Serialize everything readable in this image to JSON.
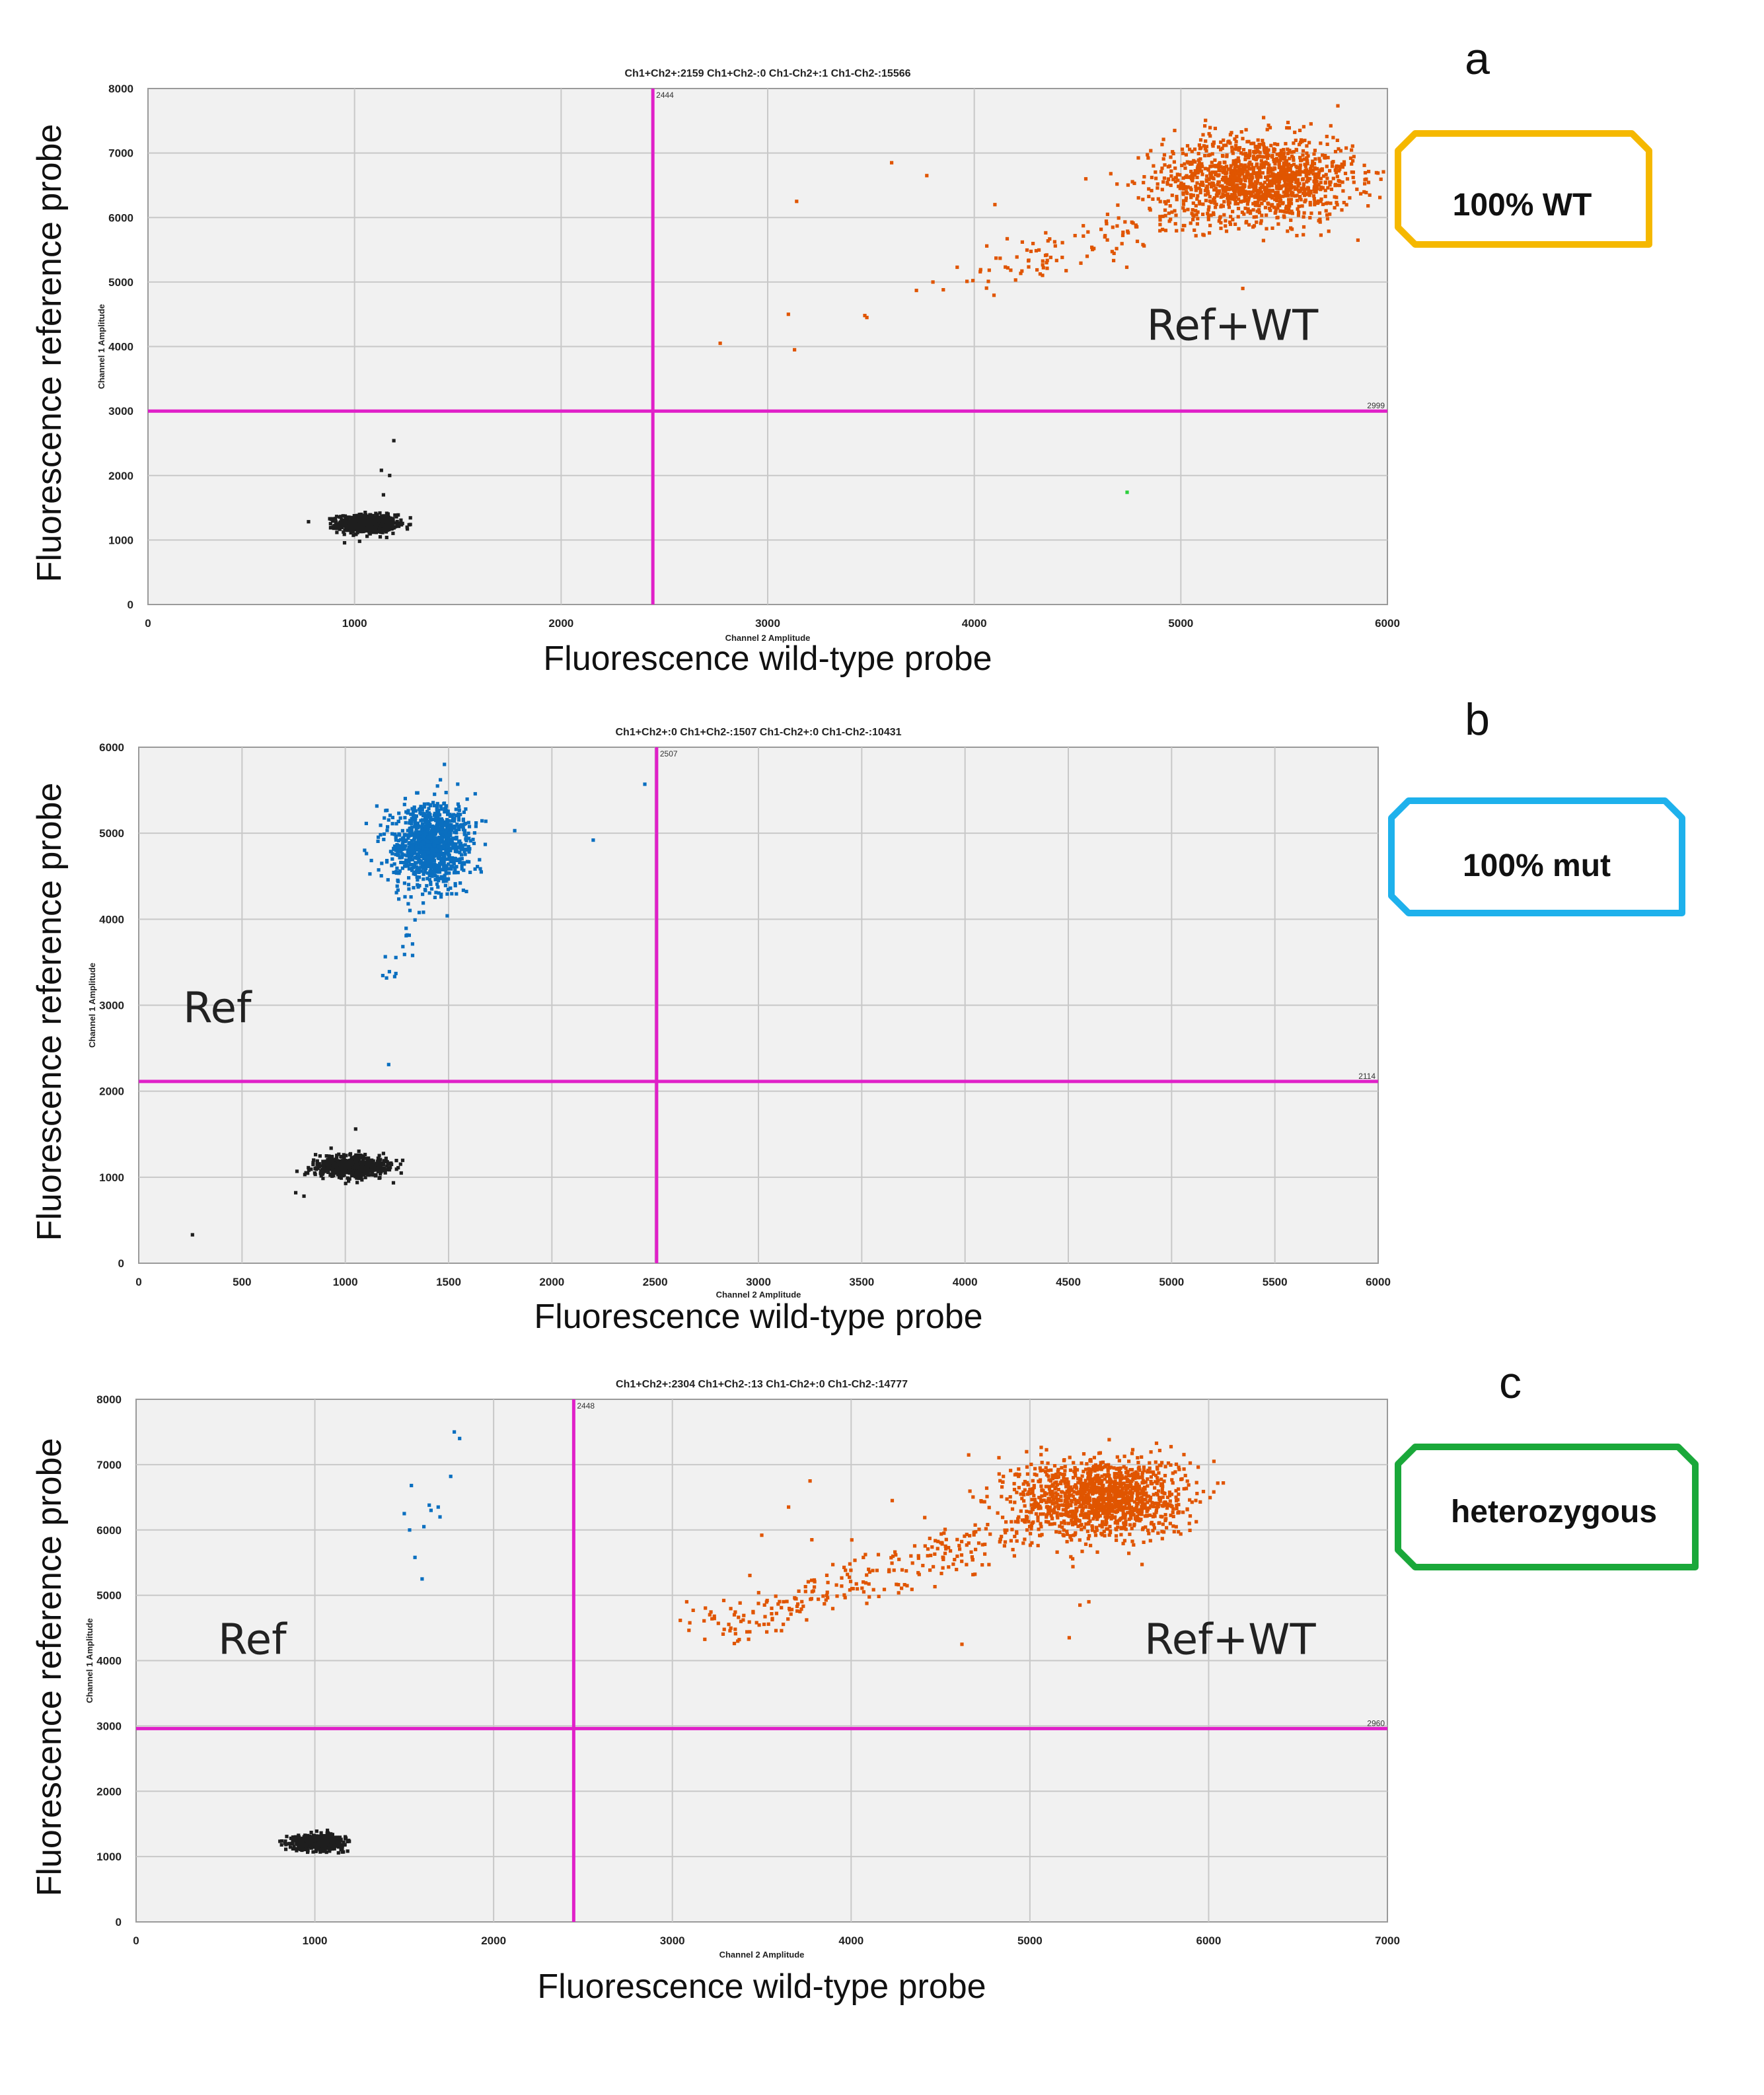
{
  "chart_data": [
    {
      "panel_letter": "a",
      "type": "scatter",
      "title": "Ch1+Ch2+:2159  Ch1+Ch2-:0  Ch1-Ch2+:1  Ch1-Ch2-:15566",
      "xlabel": "Fluorescence wild-type probe",
      "ylabel": "Fluorescence reference probe",
      "x_axis_small_label": "Channel 2 Amplitude",
      "y_axis_small_label": "Channel 1 Amplitude",
      "xlim": [
        0,
        6000
      ],
      "ylim": [
        0,
        8000
      ],
      "xticks": [
        0,
        1000,
        2000,
        3000,
        4000,
        5000,
        6000
      ],
      "yticks": [
        0,
        1000,
        2000,
        3000,
        4000,
        5000,
        6000,
        7000,
        8000
      ],
      "grid": true,
      "threshold_x": 2444,
      "threshold_x_label": "2444",
      "threshold_y": 2999,
      "threshold_y_label": "2999",
      "badge": {
        "label": "100% WT",
        "color": "#f5b800"
      },
      "region_labels": [
        {
          "text": "Ref+WT",
          "x": 5250,
          "y": 4100
        }
      ],
      "series": [
        {
          "name": "double negative",
          "color": "#1e1e1e",
          "count": 15566,
          "cluster": {
            "cx": 1060,
            "cy": 1250,
            "sx": 70,
            "sy": 70,
            "n": 700
          },
          "outliers": [
            [
              1130,
              2080
            ],
            [
              1170,
              2000
            ],
            [
              1190,
              2540
            ],
            [
              1140,
              1700
            ]
          ]
        },
        {
          "name": "Ch1+Ch2+",
          "color": "#e05500",
          "count": 2159,
          "cluster": {
            "cx": 5380,
            "cy": 6600,
            "sx": 230,
            "sy": 330,
            "n": 1300
          },
          "tail": {
            "from": [
              4000,
              5100
            ],
            "to": [
              5200,
              6300
            ],
            "n": 130,
            "spread": 180
          },
          "outliers": [
            [
              2770,
              4050
            ],
            [
              3100,
              4500
            ],
            [
              3130,
              3950
            ],
            [
              3140,
              6250
            ],
            [
              3470,
              4480
            ],
            [
              3480,
              4450
            ],
            [
              3600,
              6850
            ],
            [
              3770,
              6650
            ],
            [
              3720,
              4870
            ],
            [
              3800,
              5000
            ],
            [
              3850,
              4880
            ],
            [
              4100,
              6200
            ],
            [
              4350,
              5300
            ],
            [
              4540,
              6600
            ],
            [
              4970,
              7350
            ],
            [
              5300,
              4900
            ]
          ]
        },
        {
          "name": "Ch1-Ch2+",
          "color": "#2ccf3c",
          "count": 1,
          "outliers": [
            [
              4740,
              1740
            ]
          ]
        }
      ]
    },
    {
      "panel_letter": "b",
      "type": "scatter",
      "title": "Ch1+Ch2+:0  Ch1+Ch2-:1507  Ch1-Ch2+:0  Ch1-Ch2-:10431",
      "xlabel": "Fluorescence wild-type probe",
      "ylabel": "Fluorescence reference probe",
      "x_axis_small_label": "Channel 2 Amplitude",
      "y_axis_small_label": "Channel 1 Amplitude",
      "xlim": [
        0,
        6000
      ],
      "ylim": [
        0,
        6000
      ],
      "xticks": [
        0,
        500,
        1000,
        1500,
        2000,
        2500,
        3000,
        3500,
        4000,
        4500,
        5000,
        5500,
        6000
      ],
      "yticks": [
        0,
        1000,
        2000,
        3000,
        4000,
        5000,
        6000
      ],
      "grid": true,
      "threshold_x": 2507,
      "threshold_x_label": "2507",
      "threshold_y": 2114,
      "threshold_y_label": "2114",
      "badge": {
        "label": "100% mut",
        "color": "#1eb1ec"
      },
      "region_labels": [
        {
          "text": "Ref",
          "x": 380,
          "y": 2800
        }
      ],
      "series": [
        {
          "name": "double negative",
          "color": "#1e1e1e",
          "count": 10431,
          "cluster": {
            "cx": 1030,
            "cy": 1120,
            "sx": 85,
            "sy": 60,
            "n": 700
          },
          "outliers": [
            [
              260,
              330
            ],
            [
              760,
              820
            ],
            [
              800,
              780
            ],
            [
              1050,
              1560
            ]
          ]
        },
        {
          "name": "Ch1+Ch2-",
          "color": "#0a6fc0",
          "count": 1507,
          "cluster": {
            "cx": 1410,
            "cy": 4870,
            "sx": 90,
            "sy": 230,
            "n": 1100
          },
          "tail": {
            "from": [
              1230,
              3300
            ],
            "to": [
              1380,
              4200
            ],
            "n": 18,
            "spread": 60
          },
          "outliers": [
            [
              1210,
              2310
            ],
            [
              1820,
              5030
            ],
            [
              2200,
              4920
            ],
            [
              2450,
              5570
            ],
            [
              1480,
              5800
            ]
          ]
        }
      ]
    },
    {
      "panel_letter": "c",
      "type": "scatter",
      "title": "Ch1+Ch2+:2304  Ch1+Ch2-:13  Ch1-Ch2+:0  Ch1-Ch2-:14777",
      "xlabel": "Fluorescence wild-type probe",
      "ylabel": "Fluorescence reference probe",
      "x_axis_small_label": "Channel 2 Amplitude",
      "y_axis_small_label": "Channel 1 Amplitude",
      "xlim": [
        0,
        7000
      ],
      "ylim": [
        0,
        8000
      ],
      "xticks": [
        0,
        1000,
        2000,
        3000,
        4000,
        5000,
        6000,
        7000
      ],
      "yticks": [
        0,
        1000,
        2000,
        3000,
        4000,
        5000,
        6000,
        7000,
        8000
      ],
      "grid": true,
      "threshold_x": 2448,
      "threshold_x_label": "2448",
      "threshold_y": 2960,
      "threshold_y_label": "2960",
      "badge": {
        "label": "heterozygous",
        "color": "#1aa83a"
      },
      "region_labels": [
        {
          "text": "Ref",
          "x": 650,
          "y": 4100
        },
        {
          "text": "Ref+WT",
          "x": 6120,
          "y": 4100
        }
      ],
      "series": [
        {
          "name": "double negative",
          "color": "#1e1e1e",
          "count": 14777,
          "cluster": {
            "cx": 1020,
            "cy": 1220,
            "sx": 70,
            "sy": 55,
            "n": 700
          },
          "outliers": []
        },
        {
          "name": "Ch1+Ch2-",
          "color": "#0a6fc0",
          "count": 13,
          "outliers": [
            [
              1500,
              6250
            ],
            [
              1540,
              6680
            ],
            [
              1560,
              5580
            ],
            [
              1600,
              5250
            ],
            [
              1610,
              6050
            ],
            [
              1640,
              6380
            ],
            [
              1690,
              6350
            ],
            [
              1700,
              6200
            ],
            [
              1760,
              6820
            ],
            [
              1780,
              7500
            ],
            [
              1810,
              7400
            ],
            [
              1530,
              6000
            ],
            [
              1650,
              6300
            ]
          ]
        },
        {
          "name": "Ch1+Ch2+",
          "color": "#e05500",
          "count": 2304,
          "cluster": {
            "cx": 5400,
            "cy": 6500,
            "sx": 230,
            "sy": 300,
            "n": 1300
          },
          "tail": {
            "from": [
              3200,
              4500
            ],
            "to": [
              5100,
              6100
            ],
            "n": 280,
            "spread": 170
          },
          "outliers": [
            [
              3080,
              4900
            ],
            [
              3500,
              5920
            ],
            [
              3650,
              6350
            ],
            [
              3770,
              6750
            ],
            [
              3780,
              5850
            ],
            [
              4230,
              6450
            ],
            [
              4620,
              4250
            ],
            [
              5220,
              4350
            ],
            [
              5330,
              4900
            ],
            [
              5280,
              4850
            ]
          ]
        }
      ]
    }
  ]
}
